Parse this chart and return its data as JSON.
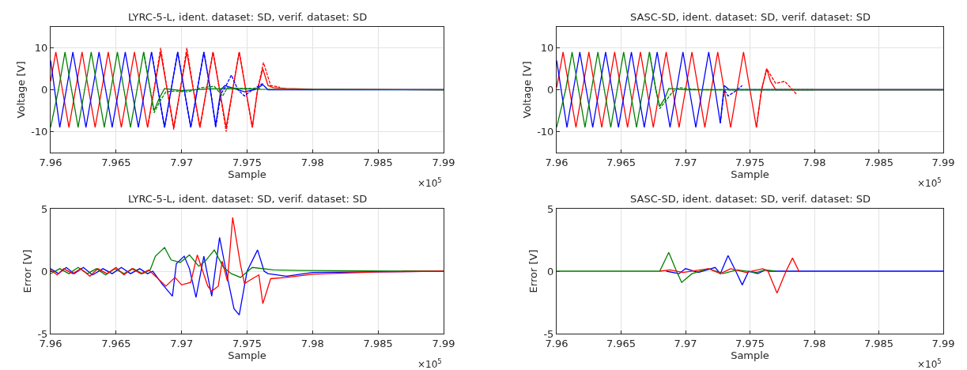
{
  "chart_data": [
    {
      "type": "line",
      "title": "LYRC-5-L, ident. dataset: SD, verif. dataset: SD",
      "xlabel": "Sample",
      "ylabel": "Voltage [V]",
      "annotations": [
        "×10$^{5}$"
      ],
      "xlim": [
        7.96,
        7.99
      ],
      "xticks": [
        7.96,
        7.965,
        7.97,
        7.975,
        7.98,
        7.985,
        7.99
      ],
      "ylim": [
        -15,
        15
      ],
      "yticks": [
        -10,
        0,
        10
      ],
      "grid": true,
      "line_style": "solid",
      "series": [
        {
          "color": "#ff0000",
          "x": [
            7.96,
            7.9604,
            7.9609,
            7.9614,
            7.9619,
            7.9624,
            7.9629,
            7.9634,
            7.9639,
            7.9644,
            7.9649,
            7.9654,
            7.9659,
            7.9664,
            7.9669,
            7.9674,
            7.9679,
            7.9684,
            7.9689,
            7.9694,
            7.9699,
            7.9704,
            7.9709,
            7.9714,
            7.9719,
            7.9724,
            7.9729,
            7.9734,
            7.9739,
            7.9744,
            7.9749,
            7.9754,
            7.9758,
            7.9762,
            7.9766,
            7.977,
            7.978,
            7.98,
            7.99
          ],
          "values": [
            2,
            9,
            0,
            -9,
            0,
            9,
            0,
            -9,
            0,
            9,
            0,
            -9,
            0,
            9,
            0,
            -9,
            0,
            9,
            0,
            -9,
            0,
            9,
            0,
            -9,
            0,
            9,
            0,
            -9,
            0,
            9,
            0,
            -9,
            0,
            5,
            1,
            0.5,
            0.3,
            0.1,
            0
          ]
        },
        {
          "color": "#0000ff",
          "x": [
            7.96,
            7.9607,
            7.9612,
            7.9617,
            7.9622,
            7.9627,
            7.9632,
            7.9637,
            7.9642,
            7.9647,
            7.9652,
            7.9657,
            7.9662,
            7.9667,
            7.9672,
            7.9677,
            7.9682,
            7.9687,
            7.9692,
            7.9697,
            7.9702,
            7.9707,
            7.9712,
            7.9717,
            7.9722,
            7.9726,
            7.973,
            7.9733,
            7.974,
            7.9748,
            7.9756,
            7.9762,
            7.9766,
            7.99
          ],
          "values": [
            7,
            -9,
            0,
            9,
            0,
            -9,
            0,
            9,
            0,
            -9,
            0,
            9,
            0,
            -9,
            0,
            9,
            0,
            -9,
            0,
            9,
            0,
            -9,
            0,
            9,
            0,
            -8.5,
            0,
            1,
            0.3,
            -0.5,
            0,
            1.2,
            0,
            0
          ]
        },
        {
          "color": "#008000",
          "x": [
            7.96,
            7.9606,
            7.9611,
            7.9616,
            7.9621,
            7.9626,
            7.9631,
            7.9636,
            7.9641,
            7.9646,
            7.9651,
            7.9656,
            7.9661,
            7.9666,
            7.9671,
            7.9676,
            7.9679,
            7.9683,
            7.9687,
            7.97,
            7.972,
            7.974,
            7.976,
            7.99
          ],
          "values": [
            -9,
            0,
            9,
            0,
            -9,
            0,
            9,
            0,
            -9,
            0,
            9,
            0,
            -9,
            0,
            9,
            0,
            -5,
            -2,
            0.3,
            -0.2,
            0.2,
            0.3,
            0.1,
            0
          ]
        },
        {
          "color": "#ff0000",
          "line_style": "dashed",
          "x": [
            7.9674,
            7.9679,
            7.9684,
            7.9689,
            7.9694,
            7.9699,
            7.9704,
            7.9709,
            7.9714,
            7.9719,
            7.9724,
            7.9729,
            7.9734,
            7.9739,
            7.9744,
            7.9749,
            7.9754,
            7.9758,
            7.97625,
            7.9768,
            7.9775
          ],
          "values": [
            -9,
            0,
            10,
            0,
            -9.5,
            0,
            10,
            0,
            -9,
            0,
            9,
            0,
            -10,
            0,
            9,
            0,
            -9,
            0,
            6.5,
            1,
            0.6
          ]
        },
        {
          "color": "#0000ff",
          "line_style": "dashed",
          "x": [
            7.9677,
            7.9682,
            7.9687,
            7.9692,
            7.9697,
            7.9702,
            7.9707,
            7.9712,
            7.9717,
            7.9722,
            7.9726,
            7.973,
            7.9734,
            7.9738,
            7.9743,
            7.9748,
            7.9754,
            7.9762
          ],
          "values": [
            9,
            0,
            -9,
            0,
            9,
            0,
            -9,
            0,
            9,
            0,
            -9,
            -1,
            1,
            3.5,
            0,
            -1.5,
            0,
            1.5
          ]
        },
        {
          "color": "#008000",
          "line_style": "dashed",
          "x": [
            7.9671,
            7.9676,
            7.9679,
            7.9683,
            7.9688,
            7.9695,
            7.9705,
            7.9715,
            7.9725,
            7.97313,
            7.9735,
            7.9745,
            7.976
          ],
          "values": [
            9,
            0,
            -5.5,
            -3,
            -0.5,
            -0.3,
            -0.5,
            0.5,
            0.8,
            -1.5,
            0.5,
            0.3,
            0.3
          ]
        }
      ]
    },
    {
      "type": "line",
      "title": "SASC-SD, ident. dataset: SD, verif. dataset: SD",
      "xlabel": "Sample",
      "ylabel": "Voltage [V]",
      "annotations": [
        "×10$^{5}$"
      ],
      "xlim": [
        7.96,
        7.99
      ],
      "xticks": [
        7.96,
        7.965,
        7.97,
        7.975,
        7.98,
        7.985,
        7.99
      ],
      "ylim": [
        -15,
        15
      ],
      "yticks": [
        -10,
        0,
        10
      ],
      "grid": true,
      "line_style": "solid",
      "series": [
        {
          "color": "#ff0000",
          "x": [
            7.96,
            7.9605,
            7.961,
            7.9615,
            7.962,
            7.9625,
            7.963,
            7.9635,
            7.964,
            7.9645,
            7.965,
            7.9655,
            7.966,
            7.9665,
            7.967,
            7.9675,
            7.968,
            7.9685,
            7.969,
            7.9695,
            7.97,
            7.9705,
            7.971,
            7.9715,
            7.972,
            7.9725,
            7.973,
            7.9735,
            7.974,
            7.9745,
            7.975,
            7.9755,
            7.9759,
            7.9763,
            7.9766,
            7.977,
            7.99
          ],
          "values": [
            0.5,
            9,
            0,
            -9,
            0,
            9,
            0,
            -9,
            0,
            9,
            0,
            -9,
            0,
            9,
            0,
            -9,
            0,
            9,
            0,
            -9,
            0,
            9,
            0,
            -9,
            0,
            9,
            0,
            -9,
            0,
            9,
            0,
            -9,
            0,
            5,
            2,
            0,
            0
          ]
        },
        {
          "color": "#0000ff",
          "x": [
            7.96,
            7.9608,
            7.9613,
            7.9618,
            7.9623,
            7.9628,
            7.9633,
            7.9638,
            7.9643,
            7.9648,
            7.9653,
            7.9658,
            7.9663,
            7.9668,
            7.9673,
            7.9678,
            7.9683,
            7.9688,
            7.9693,
            7.9698,
            7.9703,
            7.9708,
            7.9713,
            7.9718,
            7.9723,
            7.9727,
            7.973,
            7.9734,
            7.99
          ],
          "values": [
            7,
            -9,
            0,
            9,
            0,
            -9,
            0,
            9,
            0,
            -9,
            0,
            9,
            0,
            -9,
            0,
            9,
            0,
            -9,
            0,
            9,
            0,
            -9,
            0,
            9,
            0,
            -8,
            1,
            0,
            0
          ]
        },
        {
          "color": "#008000",
          "x": [
            7.96,
            7.9607,
            7.9612,
            7.9617,
            7.9622,
            7.9627,
            7.9632,
            7.9637,
            7.9642,
            7.9647,
            7.9652,
            7.9657,
            7.9662,
            7.9667,
            7.9672,
            7.9677,
            7.968,
            7.9684,
            7.9687,
            7.97,
            7.99
          ],
          "values": [
            -9,
            0,
            9,
            0,
            -9,
            0,
            9,
            0,
            -9,
            0,
            9,
            0,
            -9,
            0,
            9,
            0,
            -4,
            -2,
            0.3,
            0,
            0
          ]
        },
        {
          "color": "#ff0000",
          "line_style": "dashed",
          "x": [
            7.9755,
            7.9759,
            7.9763,
            7.977,
            7.9777,
            7.9786
          ],
          "values": [
            -9,
            0,
            5,
            1.5,
            2,
            -1
          ]
        },
        {
          "color": "#0000ff",
          "line_style": "dashed",
          "x": [
            7.9727,
            7.973,
            7.9733,
            7.9738,
            7.9744
          ],
          "values": [
            -8,
            0,
            -1.5,
            -0.5,
            1
          ]
        },
        {
          "color": "#008000",
          "line_style": "dashed",
          "x": [
            7.9672,
            7.9677,
            7.968,
            7.9685,
            7.969,
            7.9695,
            7.97,
            7.971,
            7.98
          ],
          "values": [
            9,
            0,
            -4.5,
            -2.5,
            -0.5,
            0.5,
            0.3,
            0,
            0
          ]
        }
      ]
    },
    {
      "type": "line",
      "title": "LYRC-5-L, ident. dataset: SD, verif. dataset: SD",
      "xlabel": "Sample",
      "ylabel": "Error [V]",
      "annotations": [
        "×10$^{5}$"
      ],
      "xlim": [
        7.96,
        7.99
      ],
      "xticks": [
        7.96,
        7.965,
        7.97,
        7.975,
        7.98,
        7.985,
        7.99
      ],
      "ylim": [
        -5,
        5
      ],
      "yticks": [
        -5,
        0,
        5
      ],
      "grid": true,
      "line_style": "solid",
      "series": [
        {
          "color": "#0000ff",
          "x": [
            7.96,
            7.9606,
            7.9612,
            7.9618,
            7.9625,
            7.9632,
            7.964,
            7.9647,
            7.9654,
            7.9661,
            7.9668,
            7.9674,
            7.9678,
            7.9685,
            7.9693,
            7.9696,
            7.9702,
            7.9706,
            7.9711,
            7.9717,
            7.9723,
            7.9729,
            7.9734,
            7.974,
            7.9744,
            7.975,
            7.9758,
            7.9763,
            7.9766,
            7.978,
            7.98,
            7.99
          ],
          "values": [
            0.2,
            -0.2,
            0.3,
            -0.2,
            0.3,
            -0.3,
            0.2,
            -0.2,
            0.3,
            -0.2,
            0.2,
            -0.2,
            0,
            -1,
            -2,
            0.6,
            1.2,
            0.2,
            -2.1,
            1.2,
            -2,
            2.7,
            0,
            -3,
            -3.5,
            0,
            1.7,
            0,
            -0.2,
            -0.4,
            -0.1,
            0
          ]
        },
        {
          "color": "#008000",
          "x": [
            7.96,
            7.9607,
            7.9614,
            7.9621,
            7.9628,
            7.9635,
            7.9642,
            7.9649,
            7.9656,
            7.9663,
            7.967,
            7.9676,
            7.968,
            7.9687,
            7.9692,
            7.9699,
            7.9706,
            7.9713,
            7.9718,
            7.9725,
            7.9732,
            7.9738,
            7.9745,
            7.9754,
            7.977,
            7.979,
            7.99
          ],
          "values": [
            -0.2,
            0.2,
            -0.2,
            0.3,
            -0.2,
            0.2,
            -0.3,
            0.2,
            -0.2,
            0.2,
            -0.2,
            0.1,
            1.2,
            1.9,
            0.9,
            0.7,
            1.3,
            0.4,
            0.8,
            1.7,
            0.3,
            -0.2,
            -0.5,
            0.3,
            0.1,
            0.05,
            0
          ]
        },
        {
          "color": "#ff0000",
          "x": [
            7.96,
            7.9605,
            7.961,
            7.9617,
            7.9623,
            7.963,
            7.9636,
            7.9643,
            7.965,
            7.9656,
            7.9662,
            7.9669,
            7.9675,
            7.9678,
            7.9688,
            7.9695,
            7.97,
            7.9707,
            7.9712,
            7.972,
            7.9723,
            7.9728,
            7.9731,
            7.9735,
            7.9739,
            7.9745,
            7.9748,
            7.9754,
            7.9759,
            7.9762,
            7.9768,
            7.978,
            7.98,
            7.985,
            7.99
          ],
          "values": [
            0.1,
            -0.3,
            0.2,
            -0.2,
            0.2,
            -0.4,
            0.2,
            -0.2,
            0.3,
            -0.3,
            0.2,
            -0.2,
            0.1,
            -0.2,
            -1.2,
            -0.5,
            -1.1,
            -0.9,
            1.3,
            -1.2,
            -1.6,
            -1.2,
            0.8,
            -0.8,
            4.3,
            0.5,
            -1,
            -0.6,
            -0.3,
            -2.6,
            -0.6,
            -0.5,
            -0.25,
            -0.05,
            0
          ]
        }
      ]
    },
    {
      "type": "line",
      "title": "SASC-SD, ident. dataset: SD, verif. dataset: SD",
      "xlabel": "Sample",
      "ylabel": "Error [V]",
      "annotations": [
        "×10$^{5}$"
      ],
      "xlim": [
        7.96,
        7.99
      ],
      "xticks": [
        7.96,
        7.965,
        7.97,
        7.975,
        7.98,
        7.985,
        7.99
      ],
      "ylim": [
        -5,
        5
      ],
      "yticks": [
        -5,
        0,
        5
      ],
      "grid": true,
      "line_style": "solid",
      "series": [
        {
          "color": "#0000ff",
          "x": [
            7.9685,
            7.9695,
            7.97,
            7.971,
            7.9723,
            7.9727,
            7.9733,
            7.9739,
            7.9744,
            7.9749,
            7.9756,
            7.9762,
            7.9765,
            7.99
          ],
          "values": [
            0,
            -0.2,
            0.2,
            -0.1,
            0.3,
            -0.2,
            1.25,
            0,
            -1.1,
            0,
            -0.2,
            0.1,
            0,
            0
          ]
        },
        {
          "color": "#008000",
          "x": [
            7.96,
            7.964,
            7.968,
            7.9687,
            7.9693,
            7.9697,
            7.9705,
            7.9718,
            7.9729,
            7.974,
            7.9755,
            7.9762,
            7.977
          ],
          "values": [
            0,
            0,
            0,
            1.5,
            0,
            -0.9,
            -0.2,
            0.2,
            -0.2,
            0.1,
            -0.1,
            0.1,
            0
          ]
        },
        {
          "color": "#ff0000",
          "x": [
            7.968,
            7.9688,
            7.9698,
            7.9718,
            7.9727,
            7.9735,
            7.9747,
            7.976,
            7.9764,
            7.9771,
            7.9778,
            7.9783,
            7.9788
          ],
          "values": [
            0,
            0.1,
            -0.1,
            0.2,
            -0.2,
            0.2,
            -0.1,
            0.2,
            0,
            -1.75,
            0,
            1.05,
            0
          ]
        }
      ]
    }
  ]
}
